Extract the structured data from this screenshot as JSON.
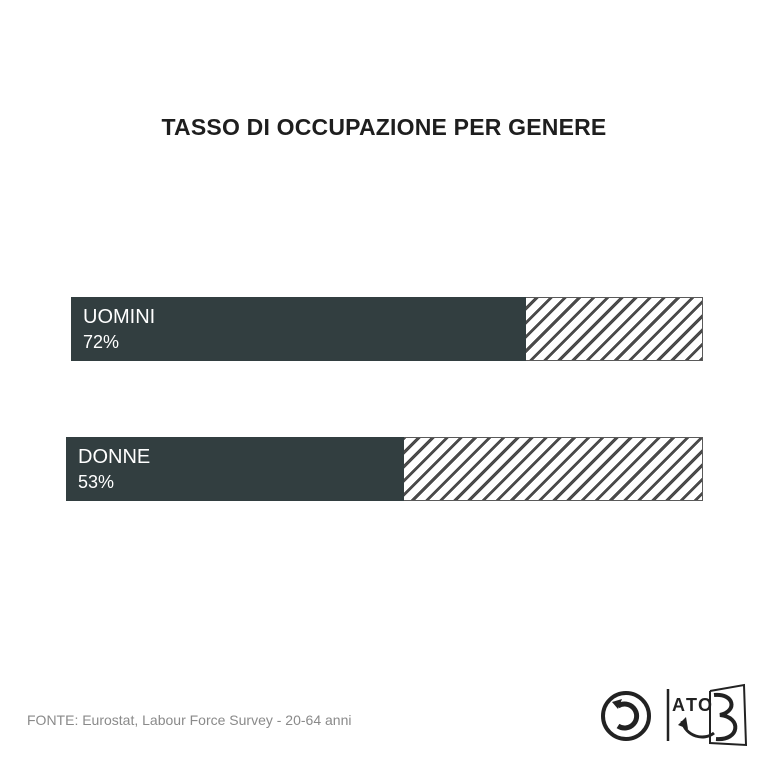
{
  "chart_data": {
    "type": "bar",
    "orientation": "horizontal",
    "title": "TASSO DI OCCUPAZIONE PER GENERE",
    "categories": [
      "UOMINI",
      "DONNE"
    ],
    "values": [
      72,
      53
    ],
    "value_labels": [
      "72%",
      "53%"
    ],
    "unit": "%",
    "xlim": [
      0,
      100
    ]
  },
  "footer": {
    "source": "FONTE: Eurostat, Labour Force Survey - 20-64 anni"
  },
  "logos": {
    "right_logo_text": "LATO B"
  },
  "colors": {
    "bar_fill": "#323e40",
    "hatch": "#4a4a4a",
    "title": "#1e1e1e",
    "source_text": "#8a8a8a"
  }
}
